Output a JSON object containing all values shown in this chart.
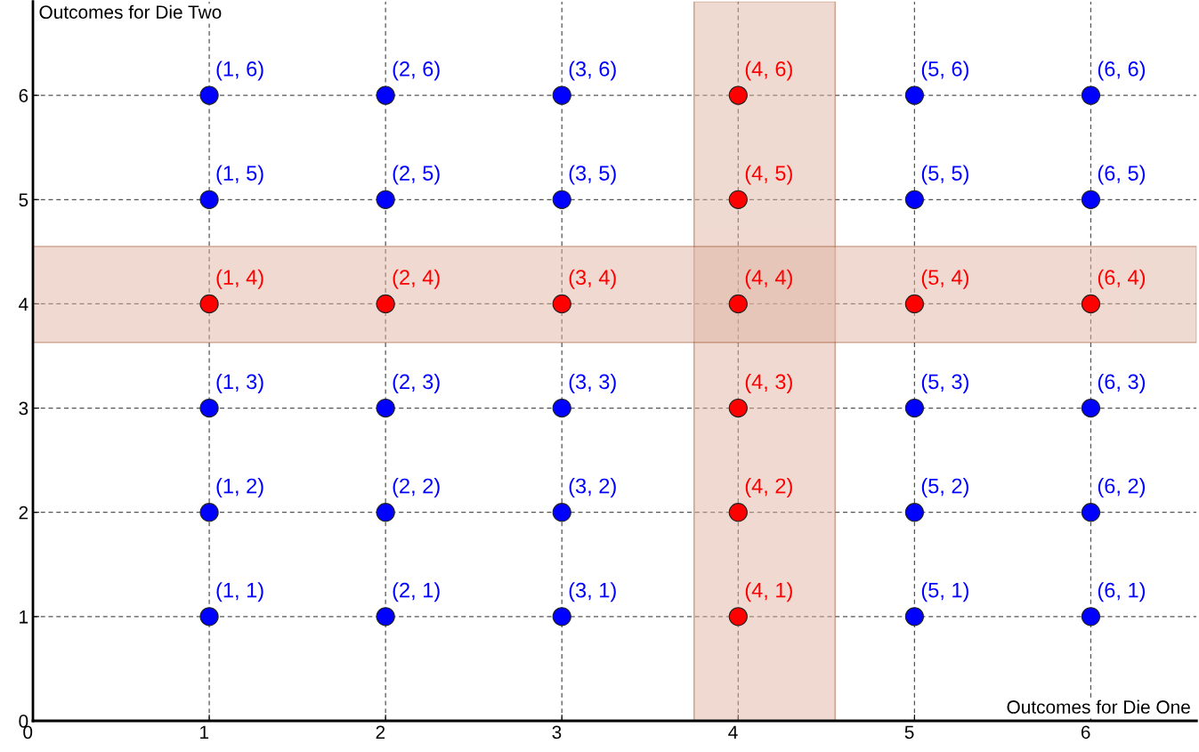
{
  "chart_data": {
    "type": "scatter",
    "xlabel": "Outcomes for Die One",
    "ylabel": "Outcomes for Die Two",
    "xlim": [
      0,
      6.6
    ],
    "ylim": [
      0,
      6.9
    ],
    "xticks": [
      0,
      1,
      2,
      3,
      4,
      5,
      6
    ],
    "yticks": [
      0,
      1,
      2,
      3,
      4,
      5,
      6
    ],
    "grid": true,
    "marker": "circle",
    "bands": [
      {
        "axis": "x",
        "from": 3.75,
        "to": 4.55,
        "color": "#e0b5a5"
      },
      {
        "axis": "y",
        "from": 3.63,
        "to": 4.55,
        "color": "#e0b5a5"
      }
    ],
    "series": [
      {
        "color": "#0000ff",
        "x": [
          1,
          1,
          1,
          1,
          1,
          2,
          2,
          2,
          2,
          2,
          3,
          3,
          3,
          3,
          3,
          5,
          5,
          5,
          5,
          5,
          6,
          6,
          6,
          6,
          6
        ],
        "values": [
          1,
          2,
          3,
          5,
          6,
          1,
          2,
          3,
          5,
          6,
          1,
          2,
          3,
          5,
          6,
          1,
          2,
          3,
          5,
          6,
          1,
          2,
          3,
          5,
          6
        ],
        "value_labels": [
          "(1, 1)",
          "(1, 2)",
          "(1, 3)",
          "(1, 5)",
          "(1, 6)",
          "(2, 1)",
          "(2, 2)",
          "(2, 3)",
          "(2, 5)",
          "(2, 6)",
          "(3, 1)",
          "(3, 2)",
          "(3, 3)",
          "(3, 5)",
          "(3, 6)",
          "(5, 1)",
          "(5, 2)",
          "(5, 3)",
          "(5, 5)",
          "(5, 6)",
          "(6, 1)",
          "(6, 2)",
          "(6, 3)",
          "(6, 5)",
          "(6, 6)"
        ]
      },
      {
        "color": "#ff0000",
        "x": [
          1,
          2,
          3,
          5,
          6,
          4,
          4,
          4,
          4,
          4,
          4
        ],
        "values": [
          4,
          4,
          4,
          4,
          4,
          1,
          2,
          3,
          4,
          5,
          6
        ],
        "value_labels": [
          "(1, 4)",
          "(2, 4)",
          "(3, 4)",
          "(5, 4)",
          "(6, 4)",
          "(4, 1)",
          "(4, 2)",
          "(4, 3)",
          "(4, 4)",
          "(4, 5)",
          "(4, 6)"
        ]
      }
    ]
  }
}
